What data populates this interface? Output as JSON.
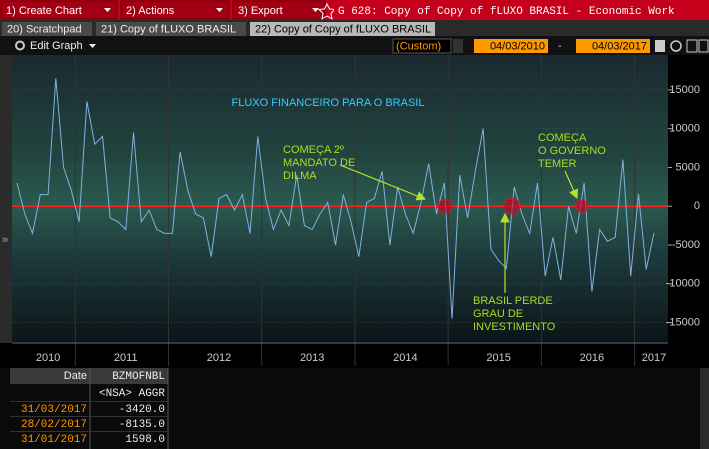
{
  "toolbar": {
    "menu": [
      "1) Create Chart",
      "2) Actions",
      "3) Export"
    ],
    "title": "G 628: Copy of Copy of fLUXO BRASIL - Economic Work"
  },
  "tabs": [
    "20) Scratchpad",
    "21) Copy of fLUXO BRASIL",
    "22) Copy of Copy of fLUXO BRASIL"
  ],
  "controls": {
    "edit": "Edit Graph",
    "period": "(Custom)",
    "start": "04/03/2010",
    "end": "04/03/2017"
  },
  "chart_data": {
    "type": "line",
    "title": "FLUXO FINANCEIRO PARA O BRASIL",
    "annotations": [
      {
        "lines": [
          "COMEÇA 2º",
          "MANDATO DE",
          "DILMA"
        ]
      },
      {
        "lines": [
          "BRASIL PERDE",
          "GRAU DE",
          "INVESTIMENTO"
        ]
      },
      {
        "lines": [
          "COMEÇA",
          "O GOVERNO",
          "TEMER"
        ]
      }
    ],
    "categories": [
      null,
      null,
      null,
      null,
      "2010",
      null,
      null,
      null,
      null,
      null,
      null,
      null,
      null,
      null,
      "2011",
      null,
      null,
      null,
      null,
      null,
      null,
      null,
      null,
      null,
      null,
      null,
      "2012",
      null,
      null,
      null,
      null,
      null,
      null,
      null,
      null,
      null,
      null,
      null,
      "2013",
      null,
      null,
      null,
      null,
      null,
      null,
      null,
      null,
      null,
      null,
      null,
      "2014",
      null,
      null,
      null,
      null,
      null,
      null,
      null,
      null,
      null,
      null,
      null,
      "2015",
      null,
      null,
      null,
      null,
      null,
      null,
      null,
      null,
      null,
      null,
      null,
      "2016",
      null,
      null,
      null,
      null,
      null,
      null,
      null,
      "2017"
    ],
    "values": [
      3000,
      -1000,
      -3500,
      1500,
      1500,
      16500,
      5000,
      2000,
      -2000,
      13500,
      8000,
      9000,
      -1500,
      -2000,
      -3000,
      9500,
      -2000,
      -500,
      -3000,
      -3500,
      -3500,
      7000,
      2000,
      -1000,
      -1500,
      -6500,
      1000,
      1500,
      -500,
      1500,
      -3500,
      9000,
      1000,
      -3000,
      -500,
      -2500,
      4000,
      -2500,
      -3000,
      -1000,
      500,
      -5000,
      1500,
      -2000,
      -6500,
      500,
      1000,
      4500,
      -5000,
      2500,
      -1000,
      -3500,
      500,
      5500,
      -1000,
      3000,
      -14500,
      4000,
      -1500,
      4500,
      10000,
      -5500,
      -7000,
      -8000,
      2500,
      -1000,
      -3500,
      3000,
      -9000,
      -4000,
      -9500,
      0,
      -3500,
      3000,
      -11000,
      -3000,
      -4500,
      -4000,
      6000,
      -9000,
      1598,
      -8135,
      -3420
    ],
    "color": "#7fb2e0",
    "ylim": [
      -17500,
      19500
    ],
    "yticks": [
      -15000,
      -10000,
      -5000,
      0,
      5000,
      10000,
      15000
    ],
    "zero_line": 0,
    "zero_line_color": "#ff2020"
  },
  "table": {
    "columns": [
      "Date",
      "BZMOFNBL"
    ],
    "subheader": "<NSA> AGGR",
    "rows": [
      [
        "31/03/2017",
        "-3420.0"
      ],
      [
        "28/02/2017",
        "-8135.0"
      ],
      [
        "31/01/2017",
        "1598.0"
      ]
    ]
  }
}
